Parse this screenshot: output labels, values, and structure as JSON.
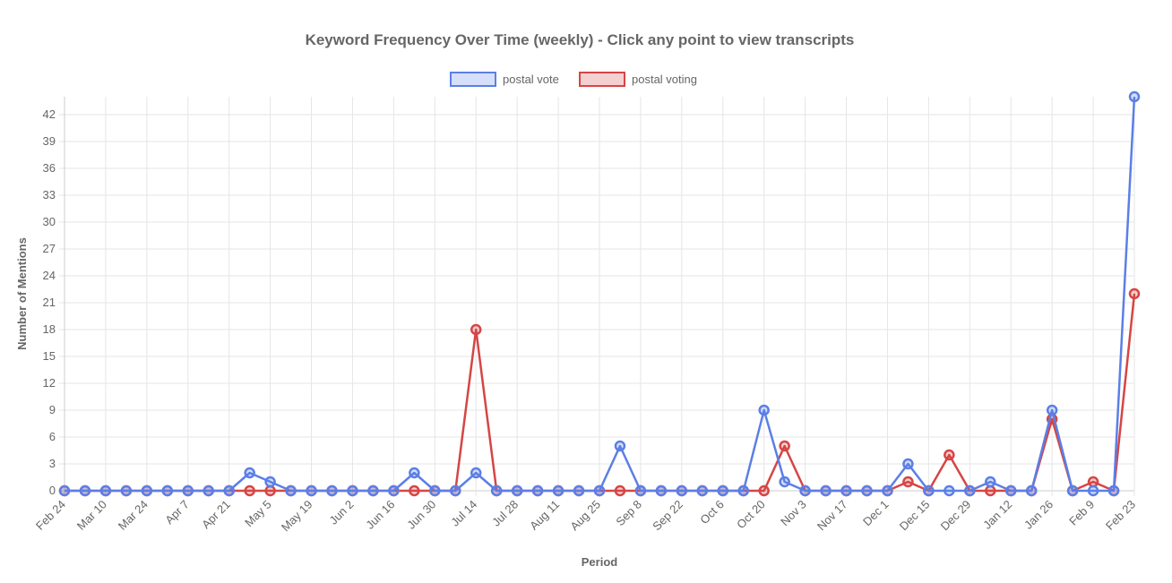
{
  "chart_data": {
    "type": "line",
    "title": "Keyword Frequency Over Time (weekly) - Click any point to view transcripts",
    "xlabel": "Period",
    "ylabel": "Number of Mentions",
    "ylim": [
      0,
      44
    ],
    "yticks": [
      0,
      3,
      6,
      9,
      12,
      15,
      18,
      21,
      24,
      27,
      30,
      33,
      36,
      39,
      42
    ],
    "grid": true,
    "legend_position": "top",
    "x_tick_labels": [
      "Feb 24",
      "Mar 10",
      "Mar 24",
      "Apr 7",
      "Apr 21",
      "May 5",
      "May 19",
      "Jun 2",
      "Jun 16",
      "Jun 30",
      "Jul 14",
      "Jul 28",
      "Aug 11",
      "Aug 25",
      "Sep 8",
      "Sep 22",
      "Oct 6",
      "Oct 20",
      "Nov 3",
      "Nov 17",
      "Dec 1",
      "Dec 15",
      "Dec 29",
      "Jan 12",
      "Jan 26",
      "Feb 9",
      "Feb 23"
    ],
    "point_count": 53,
    "series": [
      {
        "name": "postal voting",
        "color": "#d64545",
        "values": [
          0,
          0,
          0,
          0,
          0,
          0,
          0,
          0,
          0,
          0,
          0,
          0,
          0,
          0,
          0,
          0,
          0,
          0,
          0,
          0,
          18,
          0,
          0,
          0,
          0,
          0,
          0,
          0,
          0,
          0,
          0,
          0,
          0,
          0,
          0,
          5,
          0,
          0,
          0,
          0,
          0,
          1,
          0,
          4,
          0,
          0,
          0,
          0,
          8,
          0,
          1,
          0,
          22
        ]
      },
      {
        "name": "postal vote",
        "color": "#5b7fe6",
        "values": [
          0,
          0,
          0,
          0,
          0,
          0,
          0,
          0,
          0,
          2,
          1,
          0,
          0,
          0,
          0,
          0,
          0,
          2,
          0,
          0,
          2,
          0,
          0,
          0,
          0,
          0,
          0,
          5,
          0,
          0,
          0,
          0,
          0,
          0,
          9,
          1,
          0,
          0,
          0,
          0,
          0,
          3,
          0,
          0,
          0,
          1,
          0,
          0,
          9,
          0,
          0,
          0,
          44
        ]
      }
    ]
  }
}
